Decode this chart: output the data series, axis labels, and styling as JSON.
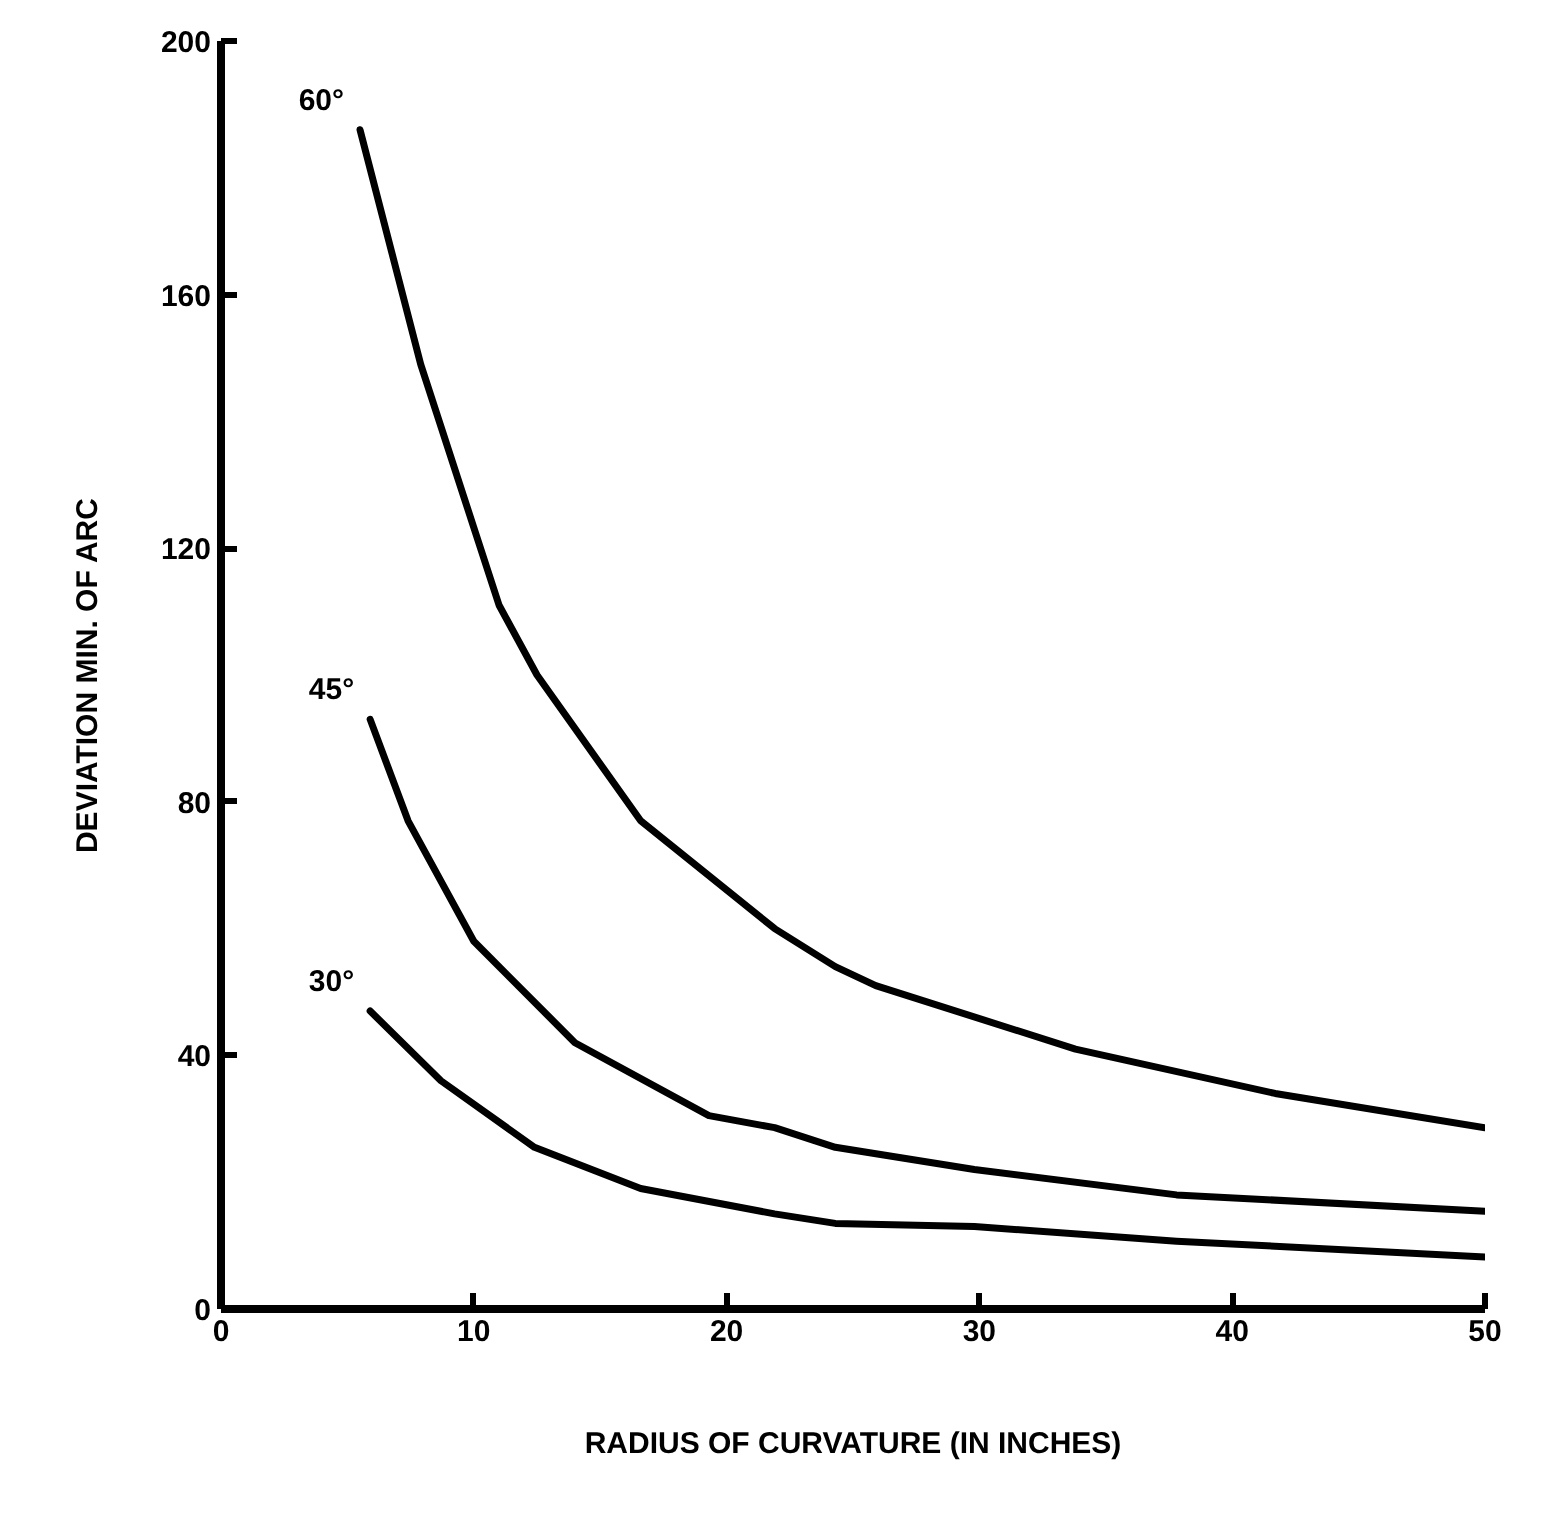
{
  "chart_data": {
    "type": "line",
    "xlabel": "RADIUS OF CURVATURE (IN INCHES)",
    "ylabel": "DEVIATION MIN. OF ARC",
    "xlim": [
      0,
      50
    ],
    "ylim": [
      0,
      200
    ],
    "xticks": [
      0,
      10,
      20,
      30,
      40,
      50
    ],
    "yticks": [
      0,
      40,
      80,
      120,
      160,
      200
    ],
    "grid": false,
    "marker": "none",
    "line_style": "solid",
    "series": [
      {
        "name": "60°",
        "color": "#000000",
        "x": [
          5.5,
          7.9,
          11,
          12.5,
          16.6,
          21.9,
          24.3,
          25.9,
          33.8,
          41.7,
          50
        ],
        "values": [
          186,
          149,
          111,
          100,
          77,
          60,
          54,
          51,
          41,
          34,
          28.6
        ]
      },
      {
        "name": "45°",
        "color": "#000000",
        "x": [
          5.9,
          7.4,
          10,
          14,
          19.3,
          21.9,
          24.3,
          29.8,
          37.8,
          50
        ],
        "values": [
          93,
          77,
          58,
          42,
          30.5,
          28.6,
          25.5,
          22,
          18,
          15.4
        ]
      },
      {
        "name": "30°",
        "color": "#000000",
        "x": [
          5.9,
          8.7,
          12.4,
          16.6,
          21.9,
          24.3,
          29.8,
          37.8,
          50
        ],
        "values": [
          47,
          36,
          25.5,
          19,
          15,
          13.5,
          13,
          10.7,
          8.2
        ]
      }
    ]
  }
}
